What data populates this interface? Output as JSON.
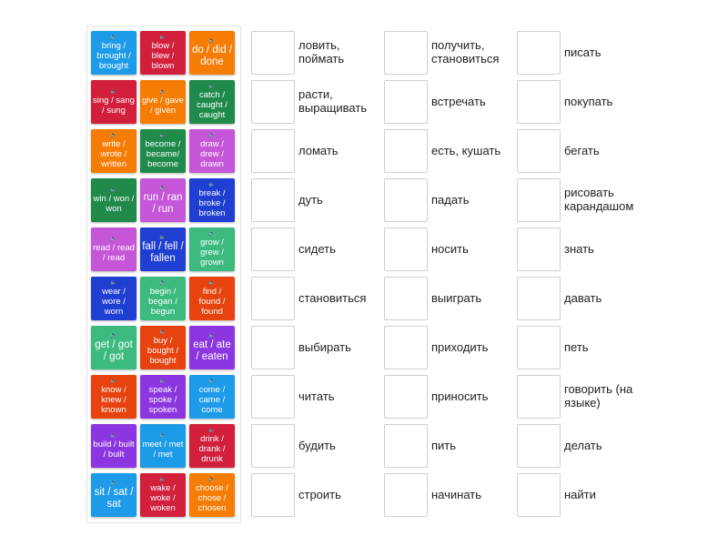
{
  "colors": {
    "blue": "#1e9be8",
    "red": "#d21f3c",
    "orange": "#f57d05",
    "green": "#1f8a4a",
    "magenta": "#c556d8",
    "darkblue": "#1f3ed2",
    "teal": "#3cba7f",
    "redorange": "#e6430f",
    "violet": "#8b36e0"
  },
  "tiles": [
    {
      "text": "bring / brought / brought",
      "color": "blue"
    },
    {
      "text": "blow / blew / blown",
      "color": "red"
    },
    {
      "text": "do / did / done",
      "color": "orange",
      "big": true
    },
    {
      "text": "sing / sang / sung",
      "color": "red"
    },
    {
      "text": "give / gave / given",
      "color": "orange"
    },
    {
      "text": "catch / caught / caught",
      "color": "green"
    },
    {
      "text": "write / wrote / written",
      "color": "orange"
    },
    {
      "text": "become / became/ become",
      "color": "green"
    },
    {
      "text": "draw / drew / drawn",
      "color": "magenta"
    },
    {
      "text": "win / won / won",
      "color": "green"
    },
    {
      "text": "run / ran / run",
      "color": "magenta",
      "big": true
    },
    {
      "text": "break / broke / broken",
      "color": "darkblue"
    },
    {
      "text": "read / read / read",
      "color": "magenta"
    },
    {
      "text": "fall / fell / fallen",
      "color": "darkblue",
      "big": true
    },
    {
      "text": "grow / grew / grown",
      "color": "teal"
    },
    {
      "text": "wear / wore / worn",
      "color": "darkblue"
    },
    {
      "text": "begin / began / begun",
      "color": "teal"
    },
    {
      "text": "find / found / found",
      "color": "redorange"
    },
    {
      "text": "get / got / got",
      "color": "teal",
      "big": true
    },
    {
      "text": "buy / bought / bought",
      "color": "redorange"
    },
    {
      "text": "eat / ate / eaten",
      "color": "violet",
      "big": true
    },
    {
      "text": "know / knew / known",
      "color": "redorange"
    },
    {
      "text": "speak / spoke / spoken",
      "color": "violet"
    },
    {
      "text": "come / came / come",
      "color": "blue"
    },
    {
      "text": "build / built / built",
      "color": "violet"
    },
    {
      "text": "meet / met / met",
      "color": "blue"
    },
    {
      "text": "drink / drank / drunk",
      "color": "red"
    },
    {
      "text": "sit / sat / sat",
      "color": "blue",
      "big": true
    },
    {
      "text": "wake / woke / woken",
      "color": "red"
    },
    {
      "text": "choose / chose / chosen",
      "color": "orange"
    }
  ],
  "targets": [
    [
      "ловить, поймать",
      "расти, выращивать",
      "ломать",
      "дуть",
      "сидеть",
      "становиться",
      "выбирать",
      "читать",
      "будить",
      "строить"
    ],
    [
      "получить, становиться",
      "встречать",
      "есть, кушать",
      "падать",
      "носить",
      "выиграть",
      "приходить",
      "приносить",
      "пить",
      "начинать"
    ],
    [
      "писать",
      "покупать",
      "бегать",
      "рисовать карандашом",
      "знать",
      "давать",
      "петь",
      "говорить (на языке)",
      "делать",
      "найти"
    ]
  ]
}
